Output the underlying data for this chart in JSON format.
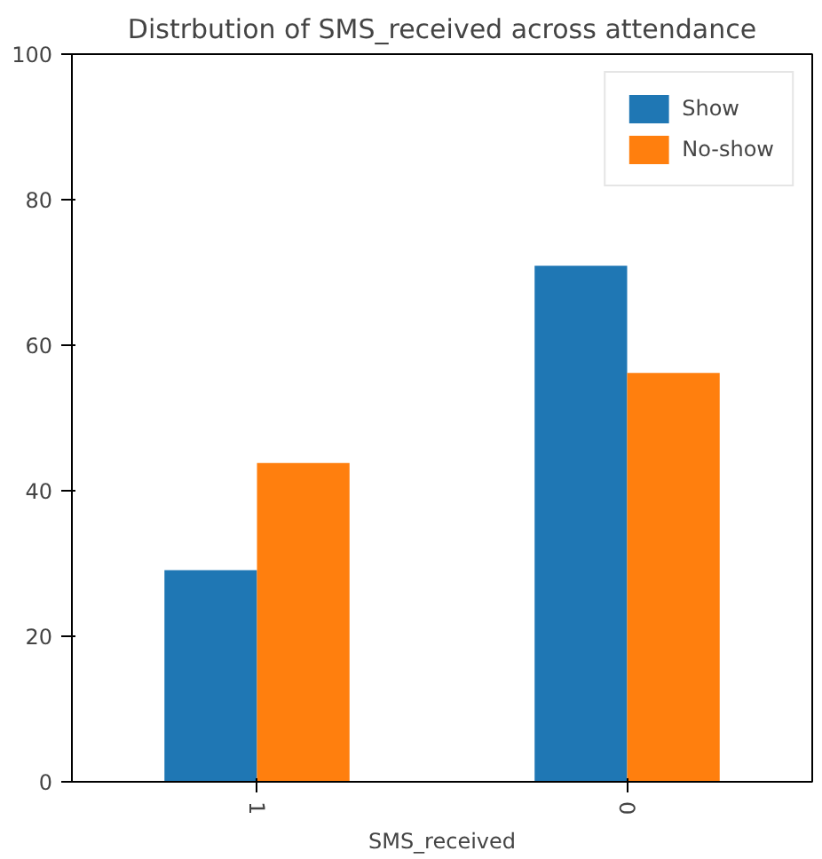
{
  "chart_data": {
    "type": "bar",
    "title": "Distrbution of SMS_received across attendance",
    "xlabel": "SMS_received",
    "categories": [
      "1",
      "0"
    ],
    "series": [
      {
        "name": "Show",
        "color": "#1f77b4",
        "values": [
          29.1,
          70.9
        ]
      },
      {
        "name": "No-show",
        "color": "#ff7f0e",
        "values": [
          43.8,
          56.2
        ]
      }
    ],
    "ylim": [
      0,
      100
    ],
    "yticks": [
      0,
      20,
      40,
      60,
      80,
      100
    ],
    "grid": false,
    "legend": "top right"
  }
}
